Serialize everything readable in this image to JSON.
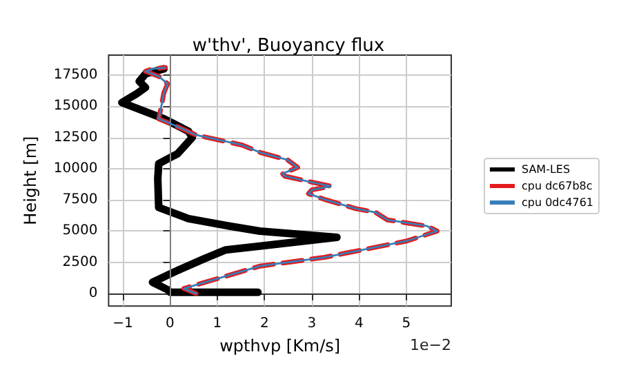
{
  "chart_data": {
    "type": "line",
    "title": "w'thv', Buoyancy flux",
    "xlabel": "wpthvp [Km/s]",
    "ylabel": "Height [m]",
    "annotations": [
      "1e−2"
    ],
    "xlim": [
      -1.3,
      5.95
    ],
    "ylim": [
      -1000,
      19100
    ],
    "xticks": [
      -1,
      0,
      1,
      2,
      3,
      4,
      5
    ],
    "yticks": [
      0,
      2500,
      5000,
      7500,
      10000,
      12500,
      15000,
      17500
    ],
    "grid": true,
    "legend": "right",
    "marker": "none",
    "ref_lines": [
      {
        "axis": "x",
        "value": 0,
        "color": "#808080"
      }
    ],
    "series": [
      {
        "name": "SAM-LES",
        "color": "#000000",
        "line_style": "solid",
        "x": [
          1.86,
          0,
          -0.05,
          -0.37,
          0.13,
          0.73,
          1.18,
          1.9,
          3.53,
          1.9,
          1.26,
          0.39,
          -0.24,
          -0.26,
          -0.24,
          0.16,
          0.47,
          0.39,
          -0.13,
          -1.02,
          -0.71,
          -0.52,
          -0.65,
          -0.52,
          -0.13
        ],
        "values": [
          100,
          100,
          300,
          900,
          1800,
          2800,
          3500,
          3800,
          4500,
          5000,
          5400,
          6000,
          6900,
          9200,
          10400,
          11200,
          12500,
          13000,
          14000,
          15300,
          16000,
          16500,
          17000,
          17600,
          18000
        ]
      },
      {
        "name": "cpu dc67b8c",
        "color": "#e41a1c",
        "line_style": "dashed",
        "x": [
          0.55,
          0.29,
          1.91,
          3.27,
          5.0,
          5.65,
          5.44,
          4.6,
          4.35,
          3.93,
          3.3,
          2.93,
          3.0,
          3.4,
          2.9,
          2.43,
          2.38,
          2.7,
          2.49,
          1.91,
          1.52,
          0.55,
          0.08,
          -0.24,
          -0.18,
          -0.13,
          -0.05,
          -0.24,
          -0.52,
          -0.37,
          -0.1
        ],
        "values": [
          0,
          400,
          2200,
          2900,
          4200,
          5000,
          5400,
          5900,
          6500,
          6800,
          7500,
          8000,
          8300,
          8600,
          9000,
          9400,
          9600,
          10100,
          10700,
          11300,
          11900,
          12700,
          13500,
          14000,
          15100,
          16100,
          16800,
          17400,
          17800,
          18000,
          18100
        ]
      },
      {
        "name": "cpu 0dc4761",
        "color": "#377eb8",
        "line_style": "solid",
        "x": [
          0.55,
          0.29,
          1.91,
          3.27,
          5.0,
          5.65,
          5.44,
          4.6,
          4.35,
          3.93,
          3.3,
          2.93,
          3.0,
          3.4,
          2.9,
          2.43,
          2.38,
          2.7,
          2.49,
          1.91,
          1.52,
          0.55,
          0.08,
          -0.24,
          -0.18,
          -0.13,
          -0.05,
          -0.24,
          -0.52,
          -0.37,
          -0.1
        ],
        "values": [
          0,
          400,
          2200,
          2900,
          4200,
          5000,
          5400,
          5900,
          6500,
          6800,
          7500,
          8000,
          8300,
          8600,
          9000,
          9400,
          9600,
          10100,
          10700,
          11300,
          11900,
          12700,
          13500,
          14000,
          15100,
          16100,
          16800,
          17400,
          17800,
          18000,
          18100
        ]
      }
    ]
  }
}
